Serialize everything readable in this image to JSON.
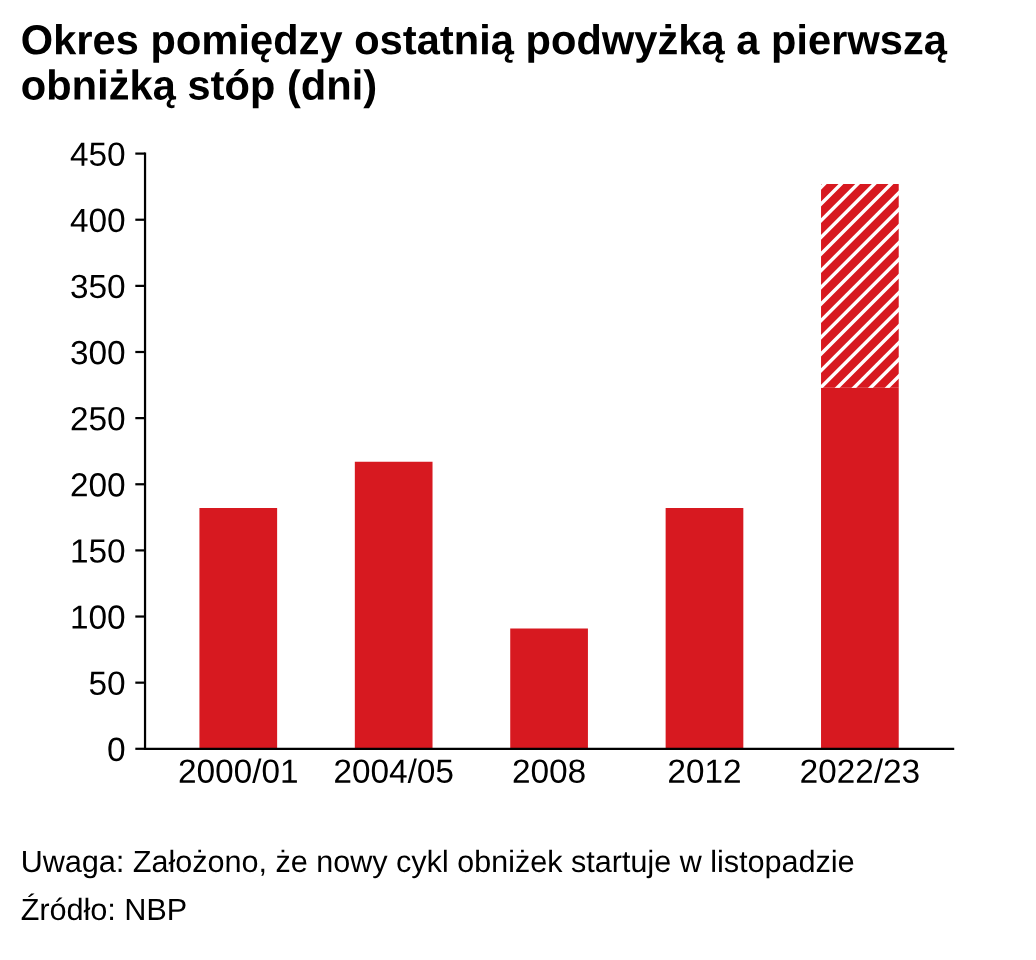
{
  "chart_data": {
    "type": "bar",
    "title": "Okres pomiędzy ostatnią podwyżką a pierwszą obniżką stóp (dni)",
    "categories": [
      "2000/01",
      "2004/05",
      "2008",
      "2012",
      "2022/23"
    ],
    "stacked": true,
    "series": [
      {
        "color": "#d71920",
        "values": [
          182,
          217,
          91,
          182,
          273
        ]
      },
      {
        "color": "#d71920",
        "values": [
          null,
          null,
          null,
          null,
          154
        ]
      }
    ],
    "ylim": [
      0,
      450
    ],
    "yticks": [
      0,
      50,
      100,
      150,
      200,
      250,
      300,
      350,
      400,
      450
    ],
    "grid": false,
    "annotations": [
      "Uwaga: Założono, że nowy cykl obniżek startuje w listopadzie",
      "Źródło: NBP"
    ]
  }
}
